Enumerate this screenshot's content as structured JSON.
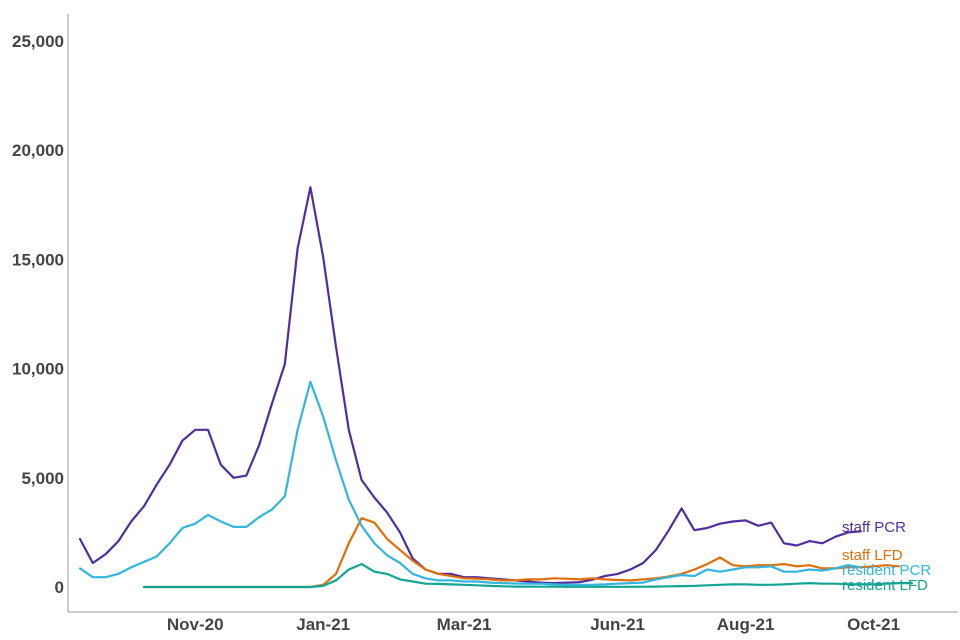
{
  "chart_data": {
    "type": "line",
    "title": "",
    "xlabel": "",
    "ylabel": "",
    "ylim": [
      0,
      25000
    ],
    "yticks": [
      0,
      5000,
      10000,
      15000,
      20000,
      25000
    ],
    "ytick_labels": [
      "0",
      "5,000",
      "10,000",
      "15,000",
      "20,000",
      "25,000"
    ],
    "xticks": [
      {
        "week": 9,
        "label": "Nov-20"
      },
      {
        "week": 19,
        "label": "Jan-21"
      },
      {
        "week": 30,
        "label": "Mar-21"
      },
      {
        "week": 42,
        "label": "Jun-21"
      },
      {
        "week": 52,
        "label": "Aug-21"
      },
      {
        "week": 62,
        "label": "Oct-21"
      }
    ],
    "grid": false,
    "legend": "line-end labels",
    "series": [
      {
        "name": "staff PCR",
        "color": "#512DA0",
        "start_week": 0,
        "values": [
          2200,
          1100,
          1500,
          2100,
          3000,
          3700,
          4700,
          5600,
          6700,
          7200,
          7200,
          5600,
          5000,
          5100,
          6500,
          8400,
          10200,
          15500,
          18300,
          15100,
          11000,
          7200,
          4900,
          4100,
          3400,
          2500,
          1300,
          800,
          600,
          600,
          450,
          450,
          400,
          350,
          300,
          250,
          200,
          180,
          200,
          220,
          330,
          500,
          600,
          800,
          1100,
          1700,
          2600,
          3600,
          2600,
          2700,
          2900,
          3000,
          3050,
          2800,
          2950,
          2000,
          1900,
          2100,
          2000,
          2300,
          2500,
          2550
        ]
      },
      {
        "name": "staff LFD",
        "color": "#E06F0A",
        "start_week": 5,
        "values": [
          0,
          0,
          0,
          0,
          0,
          0,
          0,
          0,
          0,
          0,
          0,
          0,
          0,
          0,
          100,
          600,
          2000,
          3150,
          2950,
          2200,
          1700,
          1200,
          800,
          600,
          500,
          400,
          380,
          350,
          300,
          300,
          350,
          350,
          400,
          380,
          350,
          400,
          350,
          320,
          300,
          350,
          400,
          480,
          600,
          800,
          1050,
          1350,
          1000,
          950,
          1000,
          1000,
          1050,
          950,
          1000,
          850,
          850,
          900,
          900,
          950,
          1000,
          950
        ]
      },
      {
        "name": "resident PCR",
        "color": "#33B5E0",
        "start_week": 0,
        "values": [
          850,
          450,
          450,
          600,
          900,
          1150,
          1400,
          2000,
          2700,
          2900,
          3300,
          3000,
          2750,
          2750,
          3200,
          3550,
          4150,
          7200,
          9400,
          7800,
          5800,
          4000,
          2800,
          2000,
          1450,
          1100,
          600,
          400,
          300,
          300,
          250,
          250,
          200,
          180,
          160,
          150,
          150,
          120,
          100,
          100,
          100,
          120,
          150,
          180,
          200,
          350,
          450,
          550,
          500,
          800,
          700,
          800,
          900,
          900,
          950,
          700,
          700,
          800,
          750,
          850,
          1000,
          900
        ]
      },
      {
        "name": "resident LFD",
        "color": "#13A593",
        "start_week": 5,
        "values": [
          0,
          0,
          0,
          0,
          0,
          0,
          0,
          0,
          0,
          0,
          0,
          0,
          0,
          0,
          50,
          300,
          800,
          1050,
          700,
          600,
          350,
          250,
          150,
          140,
          120,
          100,
          80,
          50,
          30,
          20,
          20,
          15,
          15,
          10,
          10,
          10,
          10,
          10,
          10,
          15,
          20,
          30,
          40,
          50,
          80,
          100,
          120,
          120,
          100,
          100,
          120,
          150,
          180,
          150,
          150,
          130,
          120,
          120,
          150,
          180,
          180
        ]
      }
    ]
  }
}
